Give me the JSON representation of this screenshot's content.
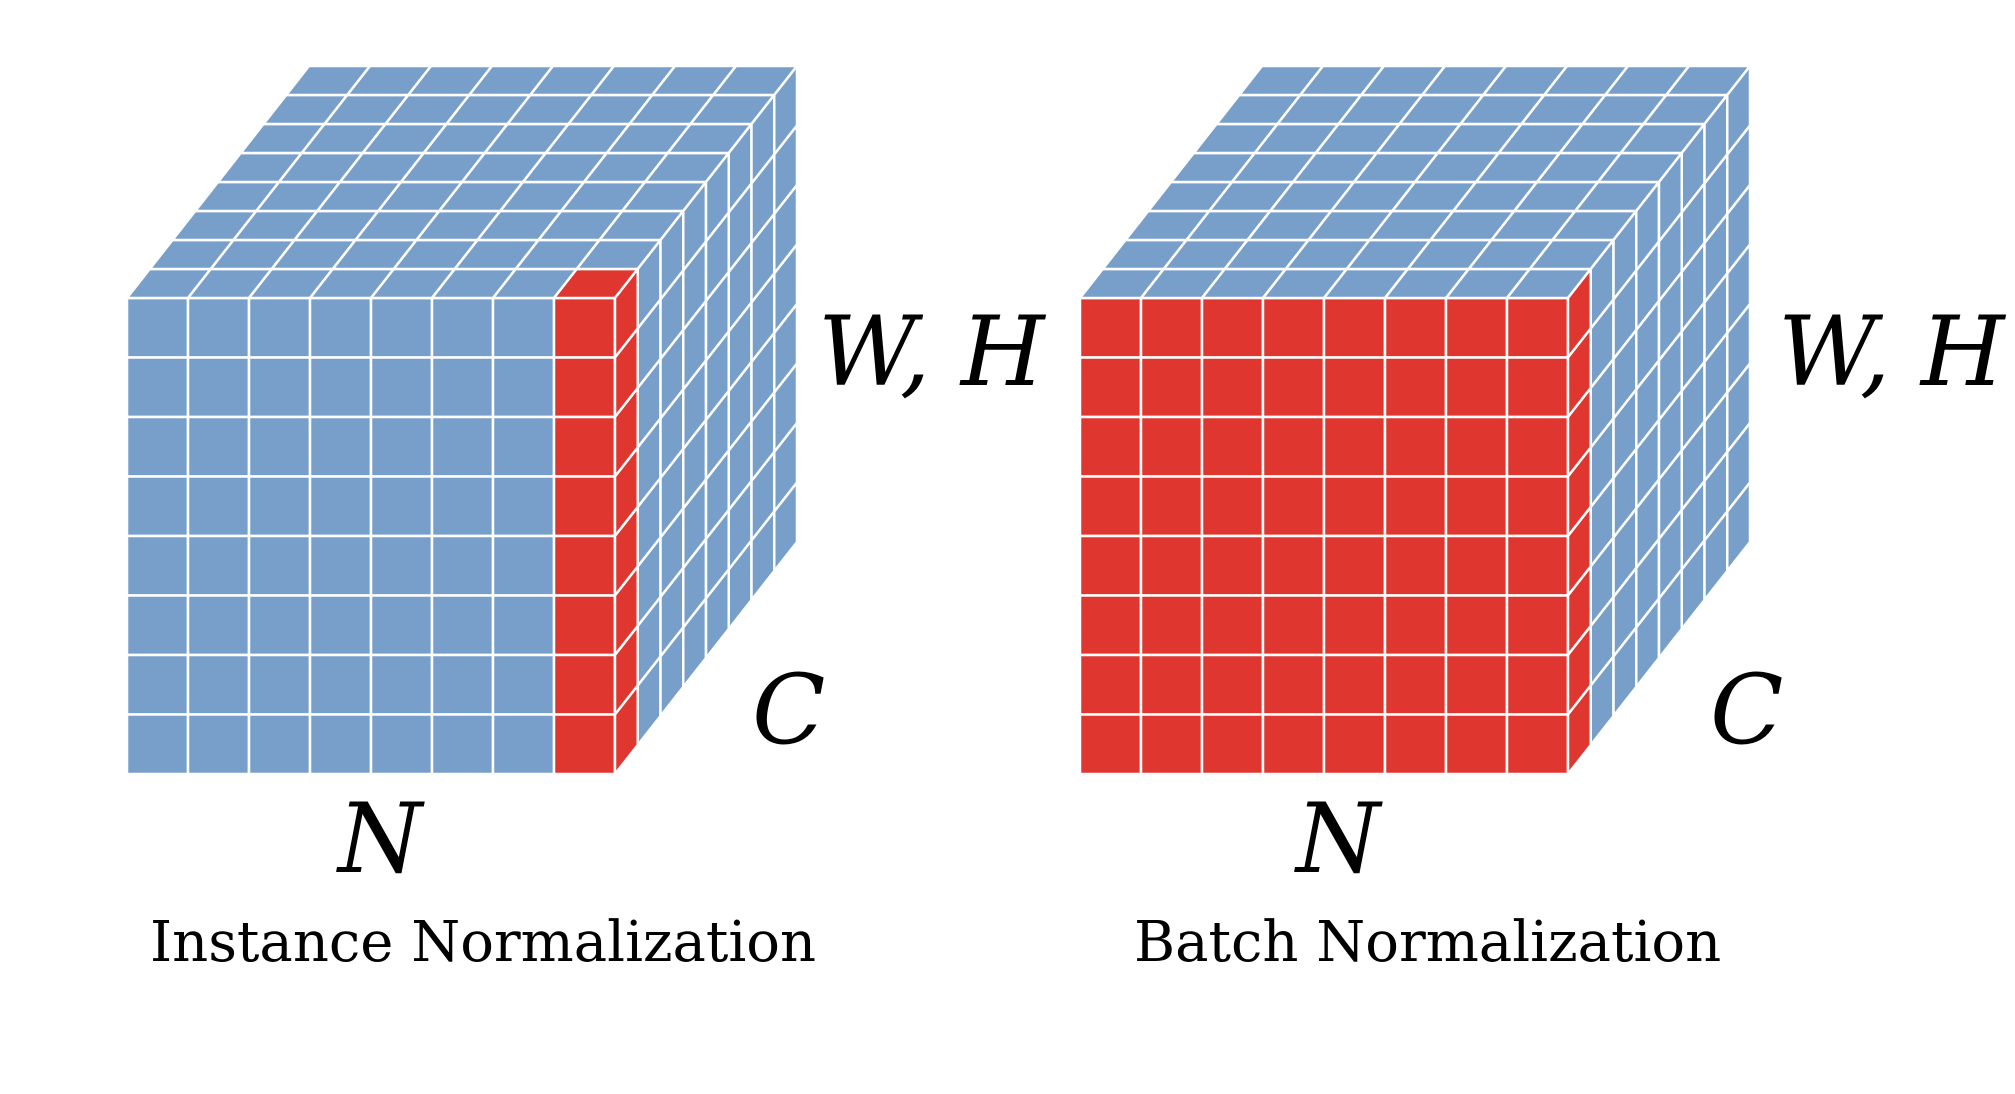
{
  "colors": {
    "cell": "#779fca",
    "highlight": "#df3630",
    "grid": "#ffffff",
    "text": "#000000"
  },
  "grid": {
    "n": 8,
    "hw": 8,
    "c": 8
  },
  "panels": [
    {
      "id": "instance",
      "caption": "Instance Normalization",
      "highlight": "last-n-slice",
      "labels": {
        "wh": "W, H",
        "c": "C",
        "n": "N"
      }
    },
    {
      "id": "batch",
      "caption": "Batch Normalization",
      "highlight": "first-c-slice",
      "labels": {
        "wh": "W, H",
        "c": "C",
        "n": "N"
      }
    }
  ]
}
